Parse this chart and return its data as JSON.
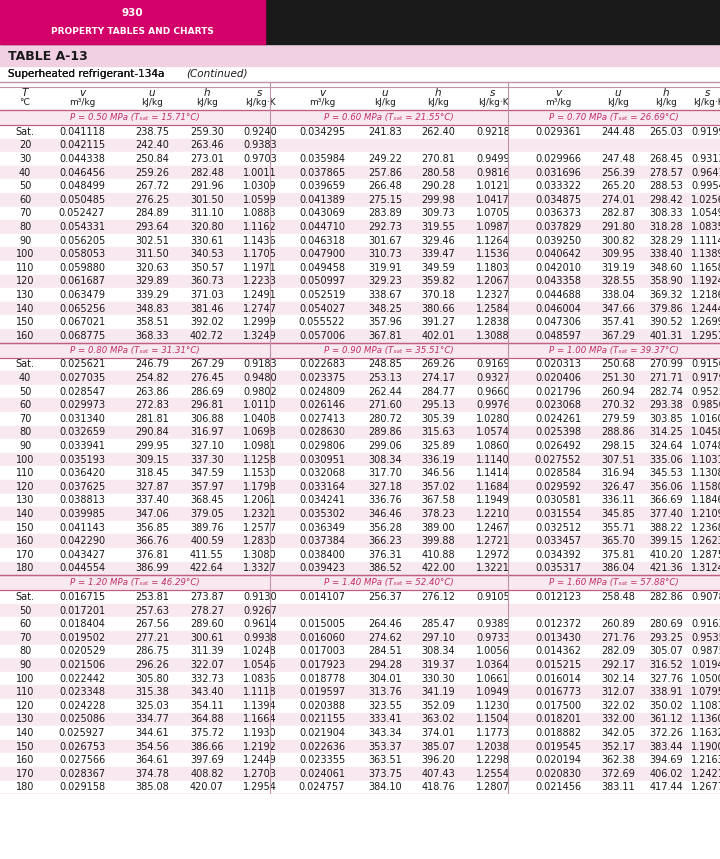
{
  "page_number": "930",
  "header_title": "PROPERTY TABLES AND CHARTS",
  "table_name": "TABLE A-13",
  "subtitle": "Superheated refrigerant-134a",
  "subtitle_italic": "(Continued)",
  "sections": [
    {
      "p_labels": [
        "P = 0.50 MPa (Tsat = 15.71°C)",
        "P = 0.60 MPa (Tsat = 21.55°C)",
        "P = 0.70 MPa (Tsat = 26.69°C)"
      ],
      "rows": [
        [
          "Sat.",
          "0.041118",
          "238.75",
          "259.30",
          "0.9240",
          "0.034295",
          "241.83",
          "262.40",
          "0.9218",
          "0.029361",
          "244.48",
          "265.03",
          "0.9199"
        ],
        [
          "20",
          "0.042115",
          "242.40",
          "263.46",
          "0.9383",
          "",
          "",
          "",
          "",
          "",
          "",
          "",
          ""
        ],
        [
          "30",
          "0.044338",
          "250.84",
          "273.01",
          "0.9703",
          "0.035984",
          "249.22",
          "270.81",
          "0.9499",
          "0.029966",
          "247.48",
          "268.45",
          "0.9313"
        ],
        [
          "40",
          "0.046456",
          "259.26",
          "282.48",
          "1.0011",
          "0.037865",
          "257.86",
          "280.58",
          "0.9816",
          "0.031696",
          "256.39",
          "278.57",
          "0.9641"
        ],
        [
          "50",
          "0.048499",
          "267.72",
          "291.96",
          "1.0309",
          "0.039659",
          "266.48",
          "290.28",
          "1.0121",
          "0.033322",
          "265.20",
          "288.53",
          "0.9954"
        ],
        [
          "60",
          "0.050485",
          "276.25",
          "301.50",
          "1.0599",
          "0.041389",
          "275.15",
          "299.98",
          "1.0417",
          "0.034875",
          "274.01",
          "298.42",
          "1.0256"
        ],
        [
          "70",
          "0.052427",
          "284.89",
          "311.10",
          "1.0883",
          "0.043069",
          "283.89",
          "309.73",
          "1.0705",
          "0.036373",
          "282.87",
          "308.33",
          "1.0549"
        ],
        [
          "80",
          "0.054331",
          "293.64",
          "320.80",
          "1.1162",
          "0.044710",
          "292.73",
          "319.55",
          "1.0987",
          "0.037829",
          "291.80",
          "318.28",
          "1.0835"
        ],
        [
          "90",
          "0.056205",
          "302.51",
          "330.61",
          "1.1436",
          "0.046318",
          "301.67",
          "329.46",
          "1.1264",
          "0.039250",
          "300.82",
          "328.29",
          "1.1114"
        ],
        [
          "100",
          "0.058053",
          "311.50",
          "340.53",
          "1.1705",
          "0.047900",
          "310.73",
          "339.47",
          "1.1536",
          "0.040642",
          "309.95",
          "338.40",
          "1.1389"
        ],
        [
          "110",
          "0.059880",
          "320.63",
          "350.57",
          "1.1971",
          "0.049458",
          "319.91",
          "349.59",
          "1.1803",
          "0.042010",
          "319.19",
          "348.60",
          "1.1658"
        ],
        [
          "120",
          "0.061687",
          "329.89",
          "360.73",
          "1.2233",
          "0.050997",
          "329.23",
          "359.82",
          "1.2067",
          "0.043358",
          "328.55",
          "358.90",
          "1.1924"
        ],
        [
          "130",
          "0.063479",
          "339.29",
          "371.03",
          "1.2491",
          "0.052519",
          "338.67",
          "370.18",
          "1.2327",
          "0.044688",
          "338.04",
          "369.32",
          "1.2186"
        ],
        [
          "140",
          "0.065256",
          "348.83",
          "381.46",
          "1.2747",
          "0.054027",
          "348.25",
          "380.66",
          "1.2584",
          "0.046004",
          "347.66",
          "379.86",
          "1.2444"
        ],
        [
          "150",
          "0.067021",
          "358.51",
          "392.02",
          "1.2999",
          "0.055522",
          "357.96",
          "391.27",
          "1.2838",
          "0.047306",
          "357.41",
          "390.52",
          "1.2699"
        ],
        [
          "160",
          "0.068775",
          "368.33",
          "402.72",
          "1.3249",
          "0.057006",
          "367.81",
          "402.01",
          "1.3088",
          "0.048597",
          "367.29",
          "401.31",
          "1.2951"
        ]
      ]
    },
    {
      "p_labels": [
        "P = 0.80 MPa (Tsat = 31.31°C)",
        "P = 0.90 MPa (Tsat = 35.51°C)",
        "P = 1.00 MPa (Tsat = 39.37°C)"
      ],
      "rows": [
        [
          "Sat.",
          "0.025621",
          "246.79",
          "267.29",
          "0.9183",
          "0.022683",
          "248.85",
          "269.26",
          "0.9169",
          "0.020313",
          "250.68",
          "270.99",
          "0.9156"
        ],
        [
          "40",
          "0.027035",
          "254.82",
          "276.45",
          "0.9480",
          "0.023375",
          "253.13",
          "274.17",
          "0.9327",
          "0.020406",
          "251.30",
          "271.71",
          "0.9179"
        ],
        [
          "50",
          "0.028547",
          "263.86",
          "286.69",
          "0.9802",
          "0.024809",
          "262.44",
          "284.77",
          "0.9660",
          "0.021796",
          "260.94",
          "282.74",
          "0.9525"
        ],
        [
          "60",
          "0.029973",
          "272.83",
          "296.81",
          "1.0110",
          "0.026146",
          "271.60",
          "295.13",
          "0.9976",
          "0.023068",
          "270.32",
          "293.38",
          "0.9850"
        ],
        [
          "70",
          "0.031340",
          "281.81",
          "306.88",
          "1.0408",
          "0.027413",
          "280.72",
          "305.39",
          "1.0280",
          "0.024261",
          "279.59",
          "303.85",
          "1.0160"
        ],
        [
          "80",
          "0.032659",
          "290.84",
          "316.97",
          "1.0698",
          "0.028630",
          "289.86",
          "315.63",
          "1.0574",
          "0.025398",
          "288.86",
          "314.25",
          "1.0458"
        ],
        [
          "90",
          "0.033941",
          "299.95",
          "327.10",
          "1.0981",
          "0.029806",
          "299.06",
          "325.89",
          "1.0860",
          "0.026492",
          "298.15",
          "324.64",
          "1.0748"
        ],
        [
          "100",
          "0.035193",
          "309.15",
          "337.30",
          "1.1258",
          "0.030951",
          "308.34",
          "336.19",
          "1.1140",
          "0.027552",
          "307.51",
          "335.06",
          "1.1031"
        ],
        [
          "110",
          "0.036420",
          "318.45",
          "347.59",
          "1.1530",
          "0.032068",
          "317.70",
          "346.56",
          "1.1414",
          "0.028584",
          "316.94",
          "345.53",
          "1.1308"
        ],
        [
          "120",
          "0.037625",
          "327.87",
          "357.97",
          "1.1798",
          "0.033164",
          "327.18",
          "357.02",
          "1.1684",
          "0.029592",
          "326.47",
          "356.06",
          "1.1580"
        ],
        [
          "130",
          "0.038813",
          "337.40",
          "368.45",
          "1.2061",
          "0.034241",
          "336.76",
          "367.58",
          "1.1949",
          "0.030581",
          "336.11",
          "366.69",
          "1.1846"
        ],
        [
          "140",
          "0.039985",
          "347.06",
          "379.05",
          "1.2321",
          "0.035302",
          "346.46",
          "378.23",
          "1.2210",
          "0.031554",
          "345.85",
          "377.40",
          "1.2109"
        ],
        [
          "150",
          "0.041143",
          "356.85",
          "389.76",
          "1.2577",
          "0.036349",
          "356.28",
          "389.00",
          "1.2467",
          "0.032512",
          "355.71",
          "388.22",
          "1.2368"
        ],
        [
          "160",
          "0.042290",
          "366.76",
          "400.59",
          "1.2830",
          "0.037384",
          "366.23",
          "399.88",
          "1.2721",
          "0.033457",
          "365.70",
          "399.15",
          "1.2623"
        ],
        [
          "170",
          "0.043427",
          "376.81",
          "411.55",
          "1.3080",
          "0.038400",
          "376.31",
          "410.88",
          "1.2972",
          "0.034392",
          "375.81",
          "410.20",
          "1.2875"
        ],
        [
          "180",
          "0.044554",
          "386.99",
          "422.64",
          "1.3327",
          "0.039423",
          "386.52",
          "422.00",
          "1.3221",
          "0.035317",
          "386.04",
          "421.36",
          "1.3124"
        ]
      ]
    },
    {
      "p_labels": [
        "P = 1.20 MPa (Tsat = 46.29°C)",
        "P = 1.40 MPa (Tsat = 52.40°C)",
        "P = 1.60 MPa (Tsat = 57.88°C)"
      ],
      "rows": [
        [
          "Sat.",
          "0.016715",
          "253.81",
          "273.87",
          "0.9130",
          "0.014107",
          "256.37",
          "276.12",
          "0.9105",
          "0.012123",
          "258.48",
          "282.86",
          "0.9078"
        ],
        [
          "50",
          "0.017201",
          "257.63",
          "278.27",
          "0.9267",
          "",
          "",
          "",
          "",
          "",
          "",
          "",
          ""
        ],
        [
          "60",
          "0.018404",
          "267.56",
          "289.60",
          "0.9614",
          "0.015005",
          "264.46",
          "285.47",
          "0.9389",
          "0.012372",
          "260.89",
          "280.69",
          "0.9163"
        ],
        [
          "70",
          "0.019502",
          "277.21",
          "300.61",
          "0.9938",
          "0.016060",
          "274.62",
          "297.10",
          "0.9733",
          "0.013430",
          "271.76",
          "293.25",
          "0.9535"
        ],
        [
          "80",
          "0.020529",
          "286.75",
          "311.39",
          "1.0248",
          "0.017003",
          "284.51",
          "308.34",
          "1.0056",
          "0.014362",
          "282.09",
          "305.07",
          "0.9875"
        ],
        [
          "90",
          "0.021506",
          "296.26",
          "322.07",
          "1.0546",
          "0.017923",
          "294.28",
          "319.37",
          "1.0364",
          "0.015215",
          "292.17",
          "316.52",
          "1.0194"
        ],
        [
          "100",
          "0.022442",
          "305.80",
          "332.73",
          "1.0836",
          "0.018778",
          "304.01",
          "330.30",
          "1.0661",
          "0.016014",
          "302.14",
          "327.76",
          "1.0500"
        ],
        [
          "110",
          "0.023348",
          "315.38",
          "343.40",
          "1.1118",
          "0.019597",
          "313.76",
          "341.19",
          "1.0949",
          "0.016773",
          "312.07",
          "338.91",
          "1.0795"
        ],
        [
          "120",
          "0.024228",
          "325.03",
          "354.11",
          "1.1394",
          "0.020388",
          "323.55",
          "352.09",
          "1.1230",
          "0.017500",
          "322.02",
          "350.02",
          "1.1081"
        ],
        [
          "130",
          "0.025086",
          "334.77",
          "364.88",
          "1.1664",
          "0.021155",
          "333.41",
          "363.02",
          "1.1504",
          "0.018201",
          "332.00",
          "361.12",
          "1.1360"
        ],
        [
          "140",
          "0.025927",
          "344.61",
          "375.72",
          "1.1930",
          "0.021904",
          "343.34",
          "374.01",
          "1.1773",
          "0.018882",
          "342.05",
          "372.26",
          "1.1632"
        ],
        [
          "150",
          "0.026753",
          "354.56",
          "386.66",
          "1.2192",
          "0.022636",
          "353.37",
          "385.07",
          "1.2038",
          "0.019545",
          "352.17",
          "383.44",
          "1.1900"
        ],
        [
          "160",
          "0.027566",
          "364.61",
          "397.69",
          "1.2449",
          "0.023355",
          "363.51",
          "396.20",
          "1.2298",
          "0.020194",
          "362.38",
          "394.69",
          "1.2163"
        ],
        [
          "170",
          "0.028367",
          "374.78",
          "408.82",
          "1.2703",
          "0.024061",
          "373.75",
          "407.43",
          "1.2554",
          "0.020830",
          "372.69",
          "406.02",
          "1.2421"
        ],
        [
          "180",
          "0.029158",
          "385.08",
          "420.07",
          "1.2954",
          "0.024757",
          "384.10",
          "418.76",
          "1.2807",
          "0.021456",
          "383.11",
          "417.44",
          "1.2677"
        ]
      ]
    }
  ],
  "colors": {
    "dark_bar": "#1a1a1a",
    "pink_bar": "#d4006a",
    "light_pink_bg": "#f5dce8",
    "table_name_bg": "#f0d0e2",
    "pink_section_line": "#c06080",
    "pink_section_bg": "#f8e8f0",
    "text": "#1a1a1a",
    "pink_label": "#c0306a",
    "sep_line": "#c090a8",
    "white": "#ffffff",
    "header_line": "#b06080"
  }
}
